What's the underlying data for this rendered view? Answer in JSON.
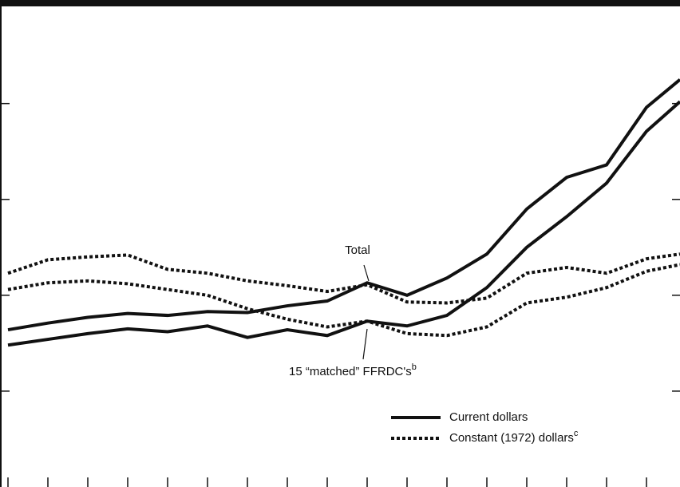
{
  "chart_data": {
    "type": "line",
    "x": [
      0,
      1,
      2,
      3,
      4,
      5,
      6,
      7,
      8,
      9,
      10,
      11,
      12,
      13,
      14,
      15,
      16,
      16.84
    ],
    "xlim": [
      -0.2,
      16.84
    ],
    "xticks": [
      0,
      1,
      2,
      3,
      4,
      5,
      6,
      7,
      8,
      9,
      10,
      11,
      12,
      13,
      14,
      15,
      16
    ],
    "ylim": [
      0,
      5.08
    ],
    "yticks": [
      1,
      2,
      3,
      4
    ],
    "series": [
      {
        "color": "#111111",
        "dashed": false,
        "values": [
          1.64,
          1.71,
          1.77,
          1.81,
          1.79,
          1.83,
          1.82,
          1.89,
          1.94,
          2.13,
          2.0,
          2.18,
          2.43,
          2.9,
          3.23,
          3.36,
          3.96,
          4.25
        ]
      },
      {
        "color": "#111111",
        "dashed": true,
        "values": [
          2.23,
          2.37,
          2.4,
          2.42,
          2.27,
          2.23,
          2.15,
          2.1,
          2.04,
          2.11,
          1.93,
          1.92,
          1.97,
          2.23,
          2.29,
          2.23,
          2.38,
          2.43
        ]
      },
      {
        "color": "#111111",
        "dashed": false,
        "values": [
          1.48,
          1.54,
          1.6,
          1.65,
          1.62,
          1.68,
          1.56,
          1.64,
          1.58,
          1.73,
          1.68,
          1.79,
          2.08,
          2.5,
          2.82,
          3.17,
          3.71,
          4.02
        ]
      },
      {
        "color": "#111111",
        "dashed": true,
        "values": [
          2.06,
          2.13,
          2.15,
          2.12,
          2.06,
          2.0,
          1.86,
          1.75,
          1.67,
          1.73,
          1.6,
          1.58,
          1.67,
          1.92,
          1.98,
          2.08,
          2.25,
          2.32
        ]
      }
    ],
    "annotations": [
      {
        "text": "Total"
      },
      {
        "text": "15 “matched” FFRDC's",
        "sup": "b"
      }
    ],
    "legend": [
      {
        "label": "Current dollars",
        "dashed": false
      },
      {
        "label": "Constant (1972) dollars",
        "sup": "c",
        "dashed": true
      }
    ]
  }
}
